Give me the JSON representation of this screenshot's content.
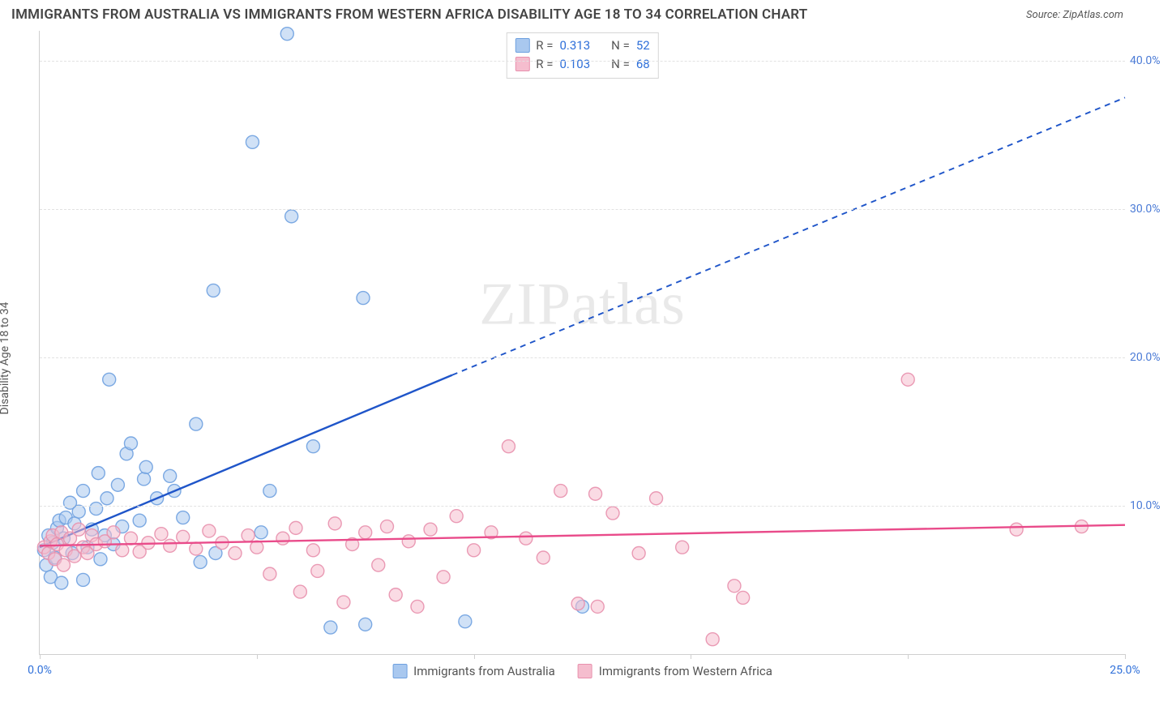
{
  "title": "IMMIGRANTS FROM AUSTRALIA VS IMMIGRANTS FROM WESTERN AFRICA DISABILITY AGE 18 TO 34 CORRELATION CHART",
  "source": "Source: ZipAtlas.com",
  "yaxis_label": "Disability Age 18 to 34",
  "watermark": "ZIPatlas",
  "chart": {
    "type": "scatter",
    "background_color": "#ffffff",
    "grid_color": "#e2e2e2",
    "axis_color": "#cfcfcf",
    "xlim": [
      0,
      25
    ],
    "ylim": [
      0,
      42
    ],
    "xtick_positions": [
      0,
      5,
      10,
      15,
      20,
      25
    ],
    "xtick_labels": {
      "0": "0.0%",
      "25": "25.0%"
    },
    "xtick_label_color": "#2e6fd9",
    "ytick_positions": [
      10,
      20,
      30,
      40
    ],
    "ytick_labels": {
      "10": "10.0%",
      "20": "20.0%",
      "30": "30.0%",
      "40": "40.0%"
    },
    "ytick_label_color": "#4b7bd6",
    "marker_radius": 8,
    "marker_opacity": 0.55,
    "marker_stroke_opacity": 0.9,
    "line_width": 2.4,
    "dash_pattern": "7 6",
    "series": [
      {
        "id": "australia",
        "label": "Immigrants from Australia",
        "color": "#6fa1e0",
        "fill": "#a9c8ef",
        "line_color": "#1f55c9",
        "R": "0.313",
        "N": "52",
        "trend": {
          "x1": 0,
          "y1": 7.2,
          "x2": 9.5,
          "y2": 18.8,
          "ext_x2": 25,
          "ext_y2": 37.5
        },
        "points": [
          [
            0.1,
            7.0
          ],
          [
            0.15,
            6.0
          ],
          [
            0.2,
            8.0
          ],
          [
            0.25,
            5.2
          ],
          [
            0.3,
            7.5
          ],
          [
            0.35,
            6.5
          ],
          [
            0.4,
            8.5
          ],
          [
            0.45,
            9.0
          ],
          [
            0.5,
            4.8
          ],
          [
            0.55,
            7.8
          ],
          [
            0.6,
            9.2
          ],
          [
            0.7,
            10.2
          ],
          [
            0.75,
            6.8
          ],
          [
            0.8,
            8.8
          ],
          [
            0.9,
            9.6
          ],
          [
            1.0,
            5.0
          ],
          [
            1.0,
            11.0
          ],
          [
            1.1,
            7.2
          ],
          [
            1.2,
            8.4
          ],
          [
            1.3,
            9.8
          ],
          [
            1.35,
            12.2
          ],
          [
            1.4,
            6.4
          ],
          [
            1.5,
            8.0
          ],
          [
            1.55,
            10.5
          ],
          [
            1.6,
            18.5
          ],
          [
            1.7,
            7.4
          ],
          [
            1.8,
            11.4
          ],
          [
            1.9,
            8.6
          ],
          [
            2.0,
            13.5
          ],
          [
            2.1,
            14.2
          ],
          [
            2.3,
            9.0
          ],
          [
            2.4,
            11.8
          ],
          [
            2.45,
            12.6
          ],
          [
            2.7,
            10.5
          ],
          [
            3.0,
            12.0
          ],
          [
            3.1,
            11.0
          ],
          [
            3.3,
            9.2
          ],
          [
            3.6,
            15.5
          ],
          [
            3.7,
            6.2
          ],
          [
            4.0,
            24.5
          ],
          [
            4.05,
            6.8
          ],
          [
            4.9,
            34.5
          ],
          [
            5.1,
            8.2
          ],
          [
            5.3,
            11.0
          ],
          [
            5.7,
            41.8
          ],
          [
            5.8,
            29.5
          ],
          [
            6.3,
            14.0
          ],
          [
            6.7,
            1.8
          ],
          [
            7.45,
            24.0
          ],
          [
            7.5,
            2.0
          ],
          [
            9.8,
            2.2
          ],
          [
            12.5,
            3.2
          ]
        ]
      },
      {
        "id": "wafrica",
        "label": "Immigrants from Western Africa",
        "color": "#e890ad",
        "fill": "#f5bdce",
        "line_color": "#e94b8a",
        "R": "0.103",
        "N": "68",
        "trend": {
          "x1": 0,
          "y1": 7.3,
          "x2": 25,
          "y2": 8.7,
          "ext_x2": 25,
          "ext_y2": 8.7
        },
        "points": [
          [
            0.1,
            7.2
          ],
          [
            0.2,
            6.8
          ],
          [
            0.25,
            7.6
          ],
          [
            0.3,
            8.0
          ],
          [
            0.35,
            6.4
          ],
          [
            0.4,
            7.4
          ],
          [
            0.5,
            8.2
          ],
          [
            0.55,
            6.0
          ],
          [
            0.6,
            7.0
          ],
          [
            0.7,
            7.8
          ],
          [
            0.8,
            6.6
          ],
          [
            0.9,
            8.4
          ],
          [
            1.0,
            7.2
          ],
          [
            1.1,
            6.8
          ],
          [
            1.2,
            8.0
          ],
          [
            1.3,
            7.4
          ],
          [
            1.5,
            7.6
          ],
          [
            1.7,
            8.2
          ],
          [
            1.9,
            7.0
          ],
          [
            2.1,
            7.8
          ],
          [
            2.3,
            6.9
          ],
          [
            2.5,
            7.5
          ],
          [
            2.8,
            8.1
          ],
          [
            3.0,
            7.3
          ],
          [
            3.3,
            7.9
          ],
          [
            3.6,
            7.1
          ],
          [
            3.9,
            8.3
          ],
          [
            4.2,
            7.5
          ],
          [
            4.5,
            6.8
          ],
          [
            4.8,
            8.0
          ],
          [
            5.0,
            7.2
          ],
          [
            5.3,
            5.4
          ],
          [
            5.6,
            7.8
          ],
          [
            5.9,
            8.5
          ],
          [
            6.0,
            4.2
          ],
          [
            6.3,
            7.0
          ],
          [
            6.4,
            5.6
          ],
          [
            6.8,
            8.8
          ],
          [
            7.0,
            3.5
          ],
          [
            7.2,
            7.4
          ],
          [
            7.5,
            8.2
          ],
          [
            7.8,
            6.0
          ],
          [
            8.0,
            8.6
          ],
          [
            8.2,
            4.0
          ],
          [
            8.5,
            7.6
          ],
          [
            8.7,
            3.2
          ],
          [
            9.0,
            8.4
          ],
          [
            9.3,
            5.2
          ],
          [
            9.6,
            9.3
          ],
          [
            10.0,
            7.0
          ],
          [
            10.4,
            8.2
          ],
          [
            10.8,
            14.0
          ],
          [
            11.2,
            7.8
          ],
          [
            11.6,
            6.5
          ],
          [
            12.0,
            11.0
          ],
          [
            12.4,
            3.4
          ],
          [
            12.8,
            10.8
          ],
          [
            12.85,
            3.2
          ],
          [
            13.2,
            9.5
          ],
          [
            13.8,
            6.8
          ],
          [
            14.2,
            10.5
          ],
          [
            14.8,
            7.2
          ],
          [
            15.5,
            1.0
          ],
          [
            16.0,
            4.6
          ],
          [
            16.2,
            3.8
          ],
          [
            20.0,
            18.5
          ],
          [
            22.5,
            8.4
          ],
          [
            24.0,
            8.6
          ]
        ]
      }
    ]
  },
  "stat_legend": {
    "r_label": "R =",
    "n_label": "N =",
    "value_color": "#2e6fd9",
    "text_color": "#555555"
  }
}
